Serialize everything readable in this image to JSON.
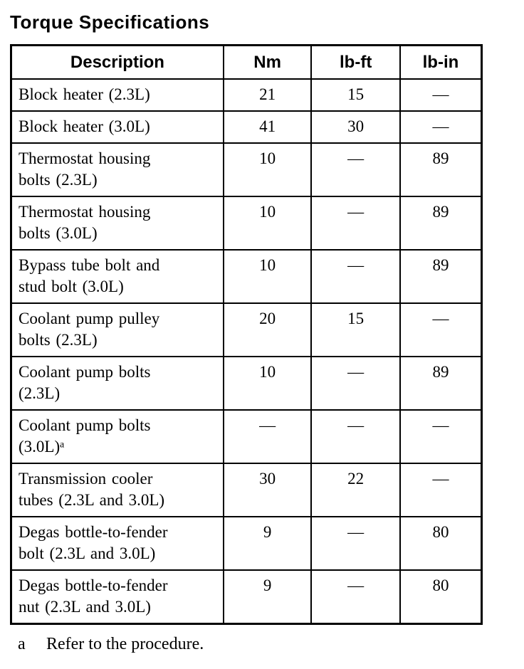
{
  "page": {
    "title": "Torque Specifications"
  },
  "table": {
    "headers": [
      "Description",
      "Nm",
      "lb-ft",
      "lb-in"
    ],
    "rows": [
      [
        "Block heater (2.3L)",
        "21",
        "15",
        "—"
      ],
      [
        "Block heater (3.0L)",
        "41",
        "30",
        "—"
      ],
      [
        "Thermostat housing\nbolts (2.3L)",
        "10",
        "—",
        "89"
      ],
      [
        "Thermostat housing\nbolts (3.0L)",
        "10",
        "—",
        "89"
      ],
      [
        "Bypass tube bolt and\nstud bolt (3.0L)",
        "10",
        "—",
        "89"
      ],
      [
        "Coolant pump pulley\nbolts (2.3L)",
        "20",
        "15",
        "—"
      ],
      [
        "Coolant pump bolts\n(2.3L)",
        "10",
        "—",
        "89"
      ],
      [
        "Coolant pump bolts\n(3.0L)ᵃ",
        "—",
        "—",
        "—"
      ],
      [
        "Transmission cooler\ntubes (2.3L and 3.0L)",
        "30",
        "22",
        "—"
      ],
      [
        "Degas bottle-to-fender\nbolt (2.3L and 3.0L)",
        "9",
        "—",
        "80"
      ],
      [
        "Degas bottle-to-fender\nnut (2.3L and 3.0L)",
        "9",
        "—",
        "80"
      ]
    ]
  },
  "footnote": {
    "marker": "a",
    "text": "Refer to the procedure."
  }
}
